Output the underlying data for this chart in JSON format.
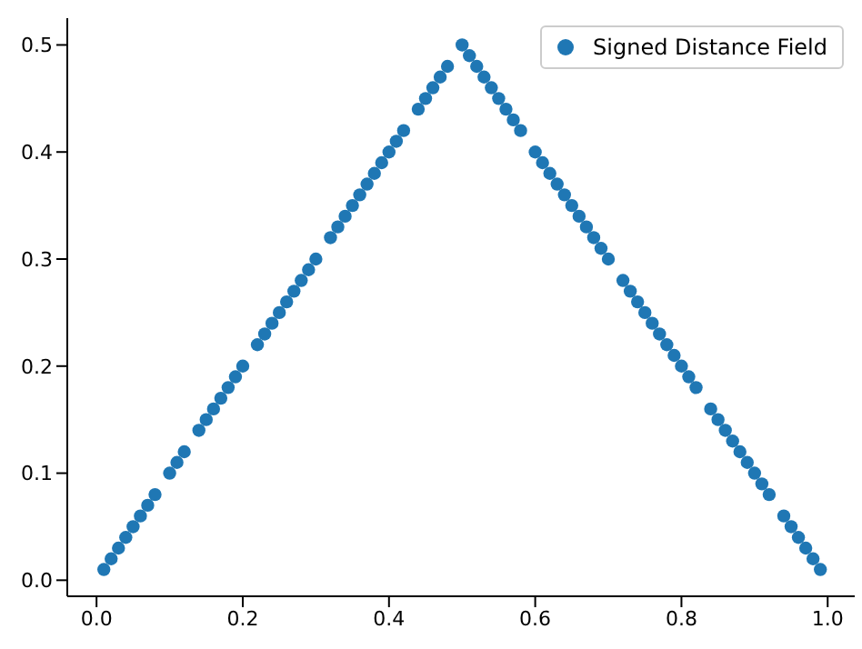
{
  "chart_data": {
    "type": "scatter",
    "x": [
      0.01,
      0.02,
      0.03,
      0.04,
      0.05,
      0.06,
      0.07,
      0.08,
      0.1,
      0.11,
      0.12,
      0.14,
      0.15,
      0.16,
      0.17,
      0.18,
      0.19,
      0.2,
      0.22,
      0.23,
      0.24,
      0.25,
      0.26,
      0.27,
      0.28,
      0.29,
      0.3,
      0.32,
      0.33,
      0.34,
      0.35,
      0.36,
      0.37,
      0.38,
      0.39,
      0.4,
      0.41,
      0.42,
      0.44,
      0.45,
      0.46,
      0.47,
      0.48,
      0.5,
      0.51,
      0.52,
      0.53,
      0.54,
      0.55,
      0.56,
      0.57,
      0.58,
      0.6,
      0.61,
      0.62,
      0.63,
      0.64,
      0.65,
      0.66,
      0.67,
      0.68,
      0.69,
      0.7,
      0.72,
      0.73,
      0.74,
      0.75,
      0.76,
      0.77,
      0.78,
      0.79,
      0.8,
      0.81,
      0.82,
      0.84,
      0.85,
      0.86,
      0.87,
      0.88,
      0.89,
      0.9,
      0.91,
      0.92,
      0.94,
      0.95,
      0.96,
      0.97,
      0.98,
      0.99
    ],
    "series": [
      {
        "name": "Signed Distance Field",
        "color": "#1f77b4",
        "values": [
          0.01,
          0.02,
          0.03,
          0.04,
          0.05,
          0.06,
          0.07,
          0.08,
          0.1,
          0.11,
          0.12,
          0.14,
          0.15,
          0.16,
          0.17,
          0.18,
          0.19,
          0.2,
          0.22,
          0.23,
          0.24,
          0.25,
          0.26,
          0.27,
          0.28,
          0.29,
          0.3,
          0.32,
          0.33,
          0.34,
          0.35,
          0.36,
          0.37,
          0.38,
          0.39,
          0.4,
          0.41,
          0.42,
          0.44,
          0.45,
          0.46,
          0.47,
          0.48,
          0.5,
          0.49,
          0.48,
          0.47,
          0.46,
          0.45,
          0.44,
          0.43,
          0.42,
          0.4,
          0.39,
          0.38,
          0.37,
          0.36,
          0.35,
          0.34,
          0.33,
          0.32,
          0.31,
          0.3,
          0.28,
          0.27,
          0.26,
          0.25,
          0.24,
          0.23,
          0.22,
          0.21,
          0.2,
          0.19,
          0.18,
          0.16,
          0.15,
          0.14,
          0.13,
          0.12,
          0.11,
          0.1,
          0.09,
          0.08,
          0.06,
          0.05,
          0.04,
          0.03,
          0.02,
          0.01
        ]
      }
    ],
    "xlim": [
      -0.04,
      1.037
    ],
    "xticks": [
      {
        "value": 0,
        "label": "0.0"
      },
      0.2,
      0.4,
      0.6,
      0.8,
      {
        "value": 1,
        "label": "1.0"
      }
    ],
    "ylim": [
      -0.015,
      0.525
    ],
    "yticks": [
      {
        "value": 0,
        "label": "0.0"
      },
      0.1,
      0.2,
      0.3,
      0.4,
      0.5
    ],
    "legend": "top right",
    "marker": "circle",
    "grid": false
  }
}
